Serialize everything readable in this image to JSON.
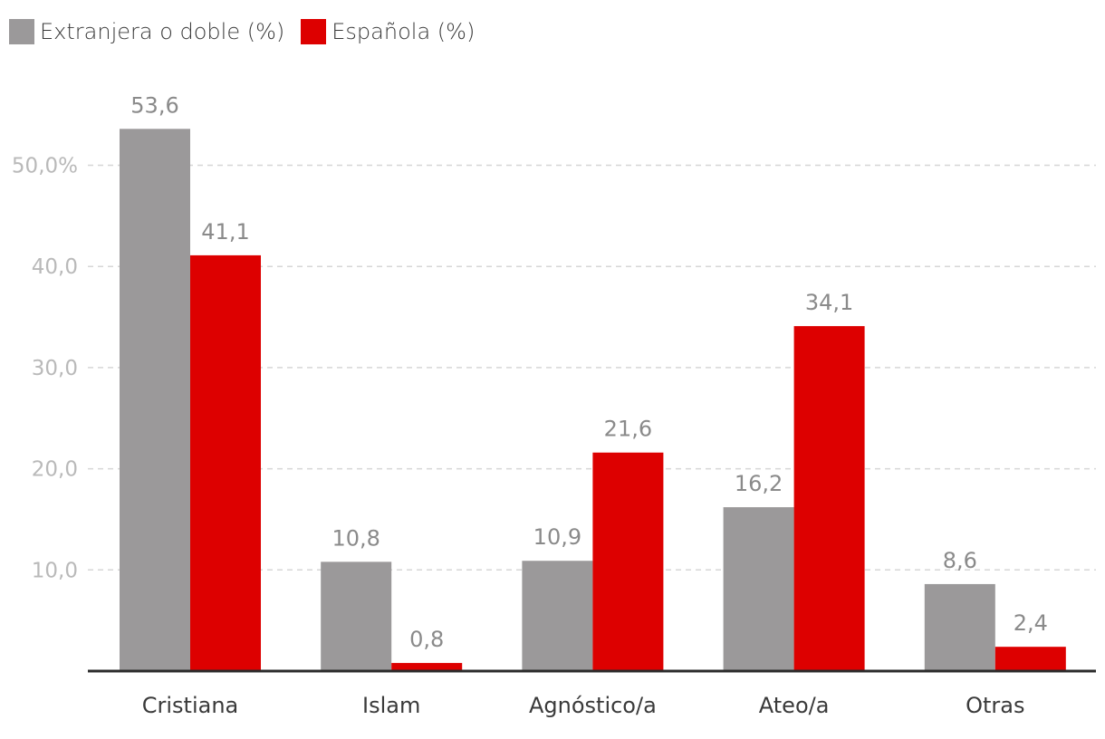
{
  "chart_data": {
    "type": "bar",
    "title": "",
    "xlabel": "",
    "ylabel": "",
    "categories": [
      "Cristiana",
      "Islam",
      "Agnóstico/a",
      "Ateo/a",
      "Otras"
    ],
    "series": [
      {
        "name": "Extranjera o doble (%)",
        "color": "#9b999a",
        "values": [
          53.6,
          10.8,
          10.9,
          16.2,
          8.6
        ],
        "labels": [
          "53,6",
          "10,8",
          "10,9",
          "16,2",
          "8,6"
        ]
      },
      {
        "name": "Española (%)",
        "color": "#dd0000",
        "values": [
          41.1,
          0.8,
          21.6,
          34.1,
          2.4
        ],
        "labels": [
          "41,1",
          "0,8",
          "21,6",
          "34,1",
          "2,4"
        ]
      }
    ],
    "ylim": [
      0,
      60
    ],
    "yticks": [
      10,
      20,
      30,
      40,
      50
    ],
    "ytick_labels": [
      "10,0",
      "20,0",
      "30,0",
      "40,0",
      "50,0%"
    ],
    "grid": true,
    "legend_position": "top-left"
  }
}
